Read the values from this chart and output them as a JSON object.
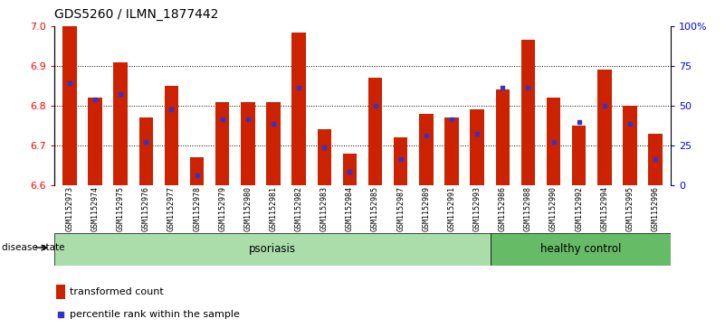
{
  "title": "GDS5260 / ILMN_1877442",
  "samples": [
    "GSM1152973",
    "GSM1152974",
    "GSM1152975",
    "GSM1152976",
    "GSM1152977",
    "GSM1152978",
    "GSM1152979",
    "GSM1152980",
    "GSM1152981",
    "GSM1152982",
    "GSM1152983",
    "GSM1152984",
    "GSM1152985",
    "GSM1152987",
    "GSM1152989",
    "GSM1152991",
    "GSM1152993",
    "GSM1152986",
    "GSM1152988",
    "GSM1152990",
    "GSM1152992",
    "GSM1152994",
    "GSM1152995",
    "GSM1152996"
  ],
  "bar_heights": [
    7.0,
    6.82,
    6.91,
    6.77,
    6.85,
    6.67,
    6.81,
    6.81,
    6.81,
    6.985,
    6.74,
    6.68,
    6.87,
    6.72,
    6.78,
    6.77,
    6.79,
    6.84,
    6.965,
    6.82,
    6.75,
    6.89,
    6.8,
    6.73
  ],
  "blue_dot_positions": [
    6.857,
    6.815,
    6.83,
    6.71,
    6.79,
    6.625,
    6.765,
    6.765,
    6.755,
    6.845,
    6.695,
    6.635,
    6.8,
    6.665,
    6.725,
    6.765,
    6.73,
    6.845,
    6.845,
    6.71,
    6.76,
    6.8,
    6.755,
    6.665
  ],
  "psoriasis_count": 17,
  "healthy_count": 7,
  "ylim_left": [
    6.6,
    7.0
  ],
  "yticks_left": [
    6.6,
    6.7,
    6.8,
    6.9,
    7.0
  ],
  "yticks_right_vals": [
    0,
    25,
    50,
    75,
    100
  ],
  "yticks_right_labels": [
    "0",
    "25",
    "50",
    "75",
    "100%"
  ],
  "grid_lines": [
    6.7,
    6.8,
    6.9
  ],
  "bar_color": "#CC2200",
  "dot_color": "#3333CC",
  "psoriasis_color": "#AADDAA",
  "healthy_color": "#66BB66",
  "bg_color": "#CCCCCC",
  "disease_state_label": "disease state",
  "psoriasis_label": "psoriasis",
  "healthy_label": "healthy control",
  "legend_bar_label": "transformed count",
  "legend_dot_label": "percentile rank within the sample"
}
